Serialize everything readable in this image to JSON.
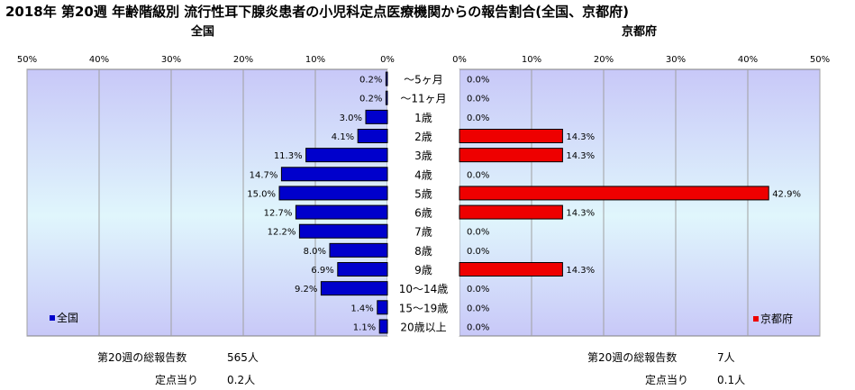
{
  "title": "2018年 第20週 年齢階級別 流行性耳下腺炎患者の小児科定点医療機関からの報告割合(全国、京都府)",
  "panels": {
    "left_title": "全国",
    "right_title": "京都府"
  },
  "legend": {
    "left_label": "全国",
    "right_label": "京都府"
  },
  "footer": {
    "left": {
      "total_label": "第20週の総報告数",
      "total_value": "565人",
      "per_label": "定点当り",
      "per_value": "0.2人"
    },
    "right": {
      "total_label": "第20週の総報告数",
      "total_value": "7人",
      "per_label": "定点当り",
      "per_value": "0.1人"
    }
  },
  "chart_data": {
    "type": "bar",
    "orientation": "horizontal",
    "categories": [
      "～5ヶ月",
      "～11ヶ月",
      "1歳",
      "2歳",
      "3歳",
      "4歳",
      "5歳",
      "6歳",
      "7歳",
      "8歳",
      "9歳",
      "10～14歳",
      "15～19歳",
      "20歳以上"
    ],
    "series": [
      {
        "name": "全国",
        "color": "#0000cc",
        "values": [
          0.2,
          0.2,
          3.0,
          4.1,
          11.3,
          14.7,
          15.0,
          12.7,
          12.2,
          8.0,
          6.9,
          9.2,
          1.4,
          1.1
        ],
        "labels": [
          "0.2%",
          "0.2%",
          "3.0%",
          "4.1%",
          "11.3%",
          "14.7%",
          "15.0%",
          "12.7%",
          "12.2%",
          "8.0%",
          "6.9%",
          "9.2%",
          "1.4%",
          "1.1%"
        ]
      },
      {
        "name": "京都府",
        "color": "#ee0000",
        "values": [
          0.0,
          0.0,
          0.0,
          14.3,
          14.3,
          0.0,
          42.9,
          14.3,
          0.0,
          0.0,
          14.3,
          0.0,
          0.0,
          0.0
        ],
        "labels": [
          "0.0%",
          "0.0%",
          "0.0%",
          "14.3%",
          "14.3%",
          "0.0%",
          "42.9%",
          "14.3%",
          "0.0%",
          "0.0%",
          "14.3%",
          "0.0%",
          "0.0%",
          "0.0%"
        ]
      }
    ],
    "xlim": [
      0,
      50
    ],
    "left_ticks": [
      "50%",
      "40%",
      "30%",
      "20%",
      "10%",
      "0%"
    ],
    "right_ticks": [
      "0%",
      "10%",
      "20%",
      "30%",
      "40%",
      "50%"
    ],
    "grid": true,
    "legend_position": "bottom-left / bottom-right"
  }
}
